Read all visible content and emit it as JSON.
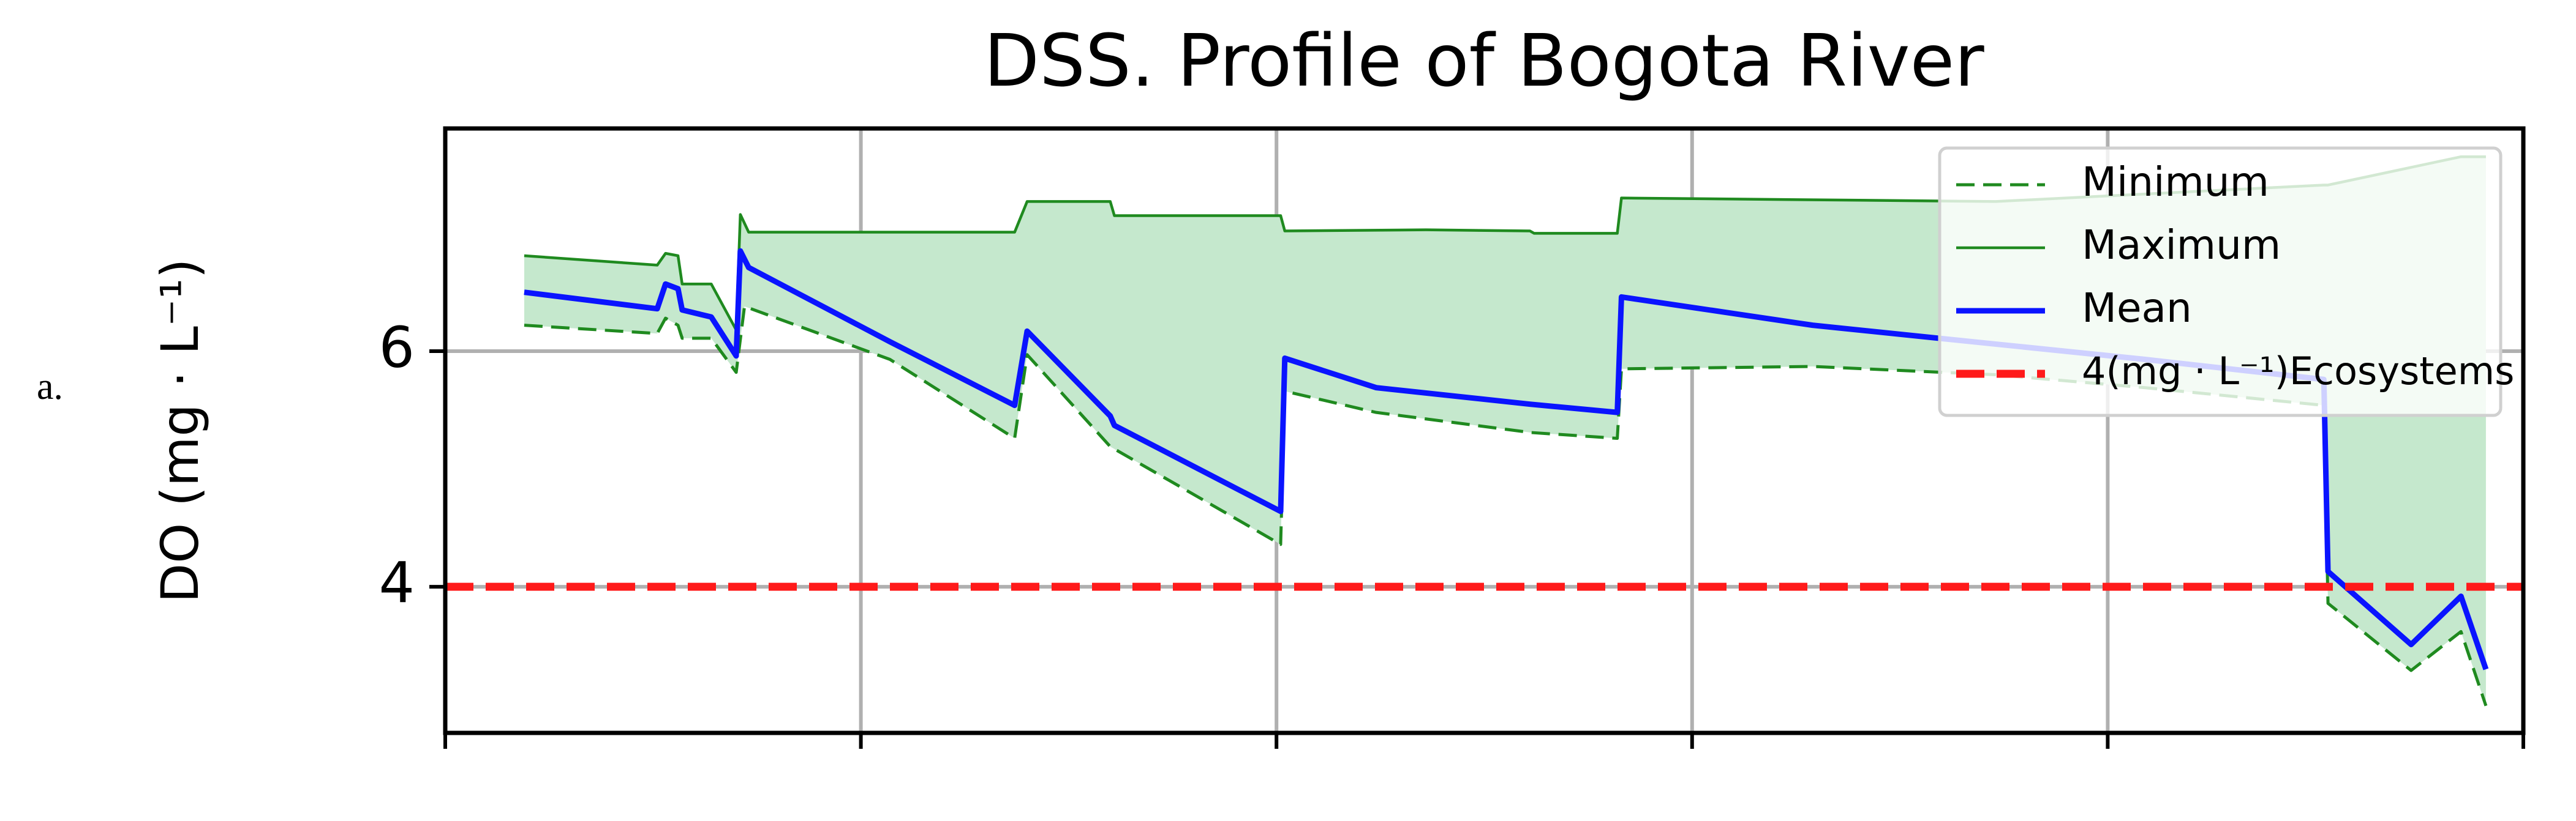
{
  "chart_data": {
    "type": "line",
    "title": "DSS. Profile of Bogota River",
    "panel_label": "a.",
    "y_label": "DO (mg · L⁻¹)",
    "xlim": [
      0,
      5
    ],
    "xticks": [
      0,
      1,
      2,
      3,
      4,
      5
    ],
    "ylim": [
      2.76,
      7.89
    ],
    "yticks": [
      4,
      6
    ],
    "grid": true,
    "legend": "upper right",
    "fill_between": {
      "lower": 0,
      "upper": 1,
      "color": "#c5e8cd"
    },
    "series": [
      {
        "name": "Minimum",
        "color": "#1f8a1f",
        "style": "dashed",
        "x": [
          0.19,
          0.51,
          0.53,
          0.56,
          0.57,
          0.64,
          0.7,
          0.72,
          1.07,
          1.37,
          1.4,
          1.6,
          2.01,
          2.02,
          2.24,
          2.61,
          2.82,
          2.83,
          3.29,
          3.73,
          4.09,
          4.52,
          4.53,
          4.73,
          4.85,
          4.91
        ],
        "values": [
          6.22,
          6.15,
          6.28,
          6.22,
          6.11,
          6.11,
          5.82,
          6.38,
          5.93,
          5.26,
          5.97,
          5.19,
          4.36,
          5.66,
          5.48,
          5.31,
          5.26,
          5.85,
          5.87,
          5.8,
          5.69,
          5.54,
          3.86,
          3.29,
          3.62,
          2.99
        ]
      },
      {
        "name": "Maximum",
        "color": "#1f8a1f",
        "style": "solid",
        "x": [
          0.19,
          0.51,
          0.53,
          0.56,
          0.57,
          0.64,
          0.7,
          0.71,
          0.73,
          1.37,
          1.4,
          1.6,
          1.61,
          2.01,
          2.02,
          2.36,
          2.61,
          2.62,
          2.82,
          2.83,
          3.73,
          4.52,
          4.53,
          4.85,
          4.91
        ],
        "values": [
          6.81,
          6.73,
          6.83,
          6.81,
          6.57,
          6.57,
          6.18,
          7.16,
          7.01,
          7.01,
          7.27,
          7.27,
          7.15,
          7.15,
          7.02,
          7.03,
          7.02,
          7.0,
          7.0,
          7.3,
          7.27,
          7.41,
          7.41,
          7.65,
          7.65
        ]
      },
      {
        "name": "Mean",
        "color": "#0a14ff",
        "style": "solid",
        "x": [
          0.19,
          0.51,
          0.53,
          0.56,
          0.57,
          0.64,
          0.7,
          0.71,
          0.73,
          1.07,
          1.37,
          1.4,
          1.6,
          1.61,
          2.01,
          2.02,
          2.24,
          2.61,
          2.82,
          2.83,
          3.29,
          3.73,
          4.09,
          4.52,
          4.53,
          4.73,
          4.85,
          4.91
        ],
        "values": [
          6.5,
          6.36,
          6.57,
          6.53,
          6.35,
          6.29,
          5.96,
          6.85,
          6.71,
          6.08,
          5.54,
          6.17,
          5.45,
          5.37,
          4.64,
          5.94,
          5.69,
          5.55,
          5.48,
          6.46,
          6.22,
          6.06,
          5.93,
          5.76,
          4.13,
          3.51,
          3.92,
          3.3
        ]
      },
      {
        "name": "4(mg · L⁻¹)Ecosystems",
        "color": "#ff1a1a",
        "style": "thick-dashed",
        "x": [
          0,
          5
        ],
        "values": [
          4,
          4
        ]
      }
    ]
  }
}
